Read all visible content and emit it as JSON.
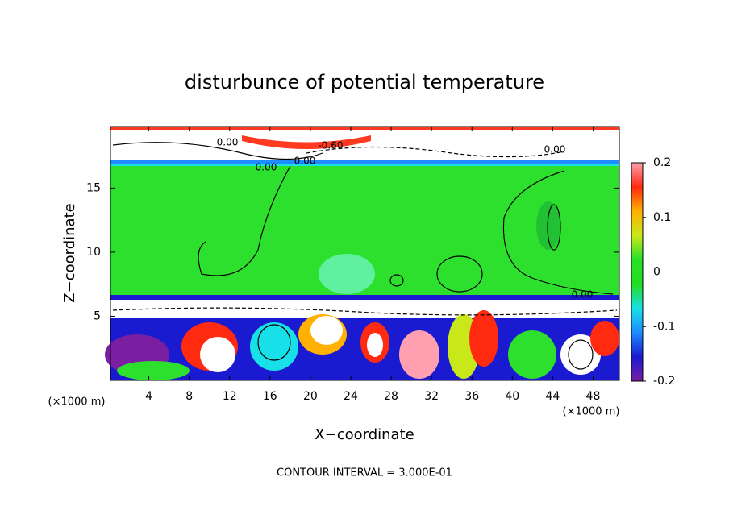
{
  "chart_data": {
    "type": "contour",
    "title": "disturbunce of potential temperature",
    "xlabel": "X−coordinate",
    "ylabel": "Z−coordinate",
    "x_unit": "(×1000 m)",
    "y_unit": "(×1000 m)",
    "footer": "CONTOUR INTERVAL = 3.000E-01",
    "xlim": [
      0.2,
      50.6
    ],
    "xticks": [
      4,
      8,
      12,
      16,
      20,
      24,
      28,
      32,
      36,
      40,
      44,
      48
    ],
    "ylim": [
      0,
      19.8
    ],
    "yticks": [
      5,
      10,
      15
    ],
    "contour_labels": [
      "0.00",
      "-0.60",
      "0.00",
      "0.00",
      "0.00",
      "0.00"
    ],
    "colorbar": {
      "lim": [
        -0.2,
        0.2
      ],
      "ticks": [
        -0.2,
        -0.1,
        0,
        0.1,
        0.2
      ],
      "colors": [
        "#7a1fa2",
        "#1a1ad0",
        "#1e8cff",
        "#18e0e8",
        "#22dd22",
        "#28e028",
        "#c8e81a",
        "#ffb000",
        "#ff2a10",
        "#ff9fb0"
      ]
    }
  }
}
